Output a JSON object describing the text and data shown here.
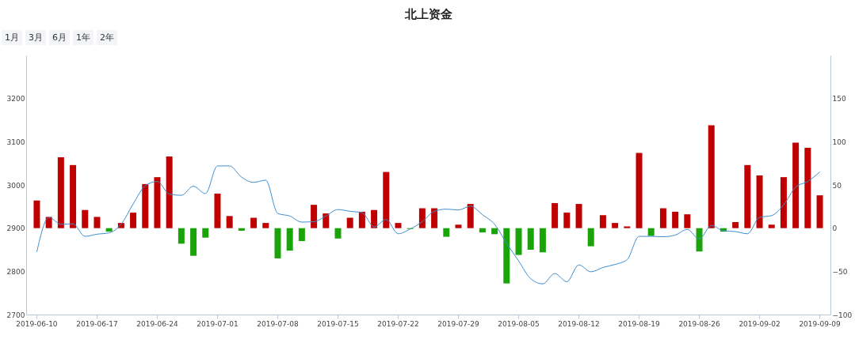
{
  "chart_data": {
    "type": "bar",
    "title": "北上资金",
    "annotations": [
      "1月",
      "3月",
      "6月",
      "1年",
      "2年"
    ],
    "categories": [
      "2019-06-10",
      null,
      null,
      null,
      null,
      "2019-06-17",
      null,
      null,
      null,
      null,
      "2019-06-24",
      null,
      null,
      null,
      null,
      "2019-07-01",
      null,
      null,
      null,
      null,
      "2019-07-08",
      null,
      null,
      null,
      null,
      "2019-07-15",
      null,
      null,
      null,
      null,
      "2019-07-22",
      null,
      null,
      null,
      null,
      "2019-07-29",
      null,
      null,
      null,
      null,
      "2019-08-05",
      null,
      null,
      null,
      null,
      "2019-08-12",
      null,
      null,
      null,
      null,
      "2019-08-19",
      null,
      null,
      null,
      null,
      "2019-08-26",
      null,
      null,
      null,
      null,
      "2019-09-02",
      null,
      null,
      null,
      null,
      "2019-09-09"
    ],
    "series": [
      {
        "axis": "y2",
        "values": [
          32,
          13,
          82,
          73,
          21,
          13,
          -4,
          6,
          18,
          51,
          59,
          83,
          -18,
          -32,
          -11,
          40,
          14,
          -3,
          12,
          6,
          -35,
          -26,
          -15,
          27,
          17,
          -12,
          12,
          19,
          21,
          65,
          6,
          -1,
          23,
          23,
          -10,
          4,
          28,
          -5,
          -7,
          -64,
          -31,
          -25,
          -28,
          29,
          18,
          28,
          -21,
          15,
          6,
          2,
          87,
          -9,
          23,
          19,
          16,
          -27,
          119,
          -4,
          7,
          73,
          61,
          4,
          59,
          99,
          93,
          38
        ],
        "colors": [
          "#c00000",
          "#c00000",
          "#c00000",
          "#c00000",
          "#c00000",
          "#c00000",
          "#1ba40a",
          "#c00000",
          "#c00000",
          "#c00000",
          "#c00000",
          "#c00000",
          "#1ba40a",
          "#1ba40a",
          "#1ba40a",
          "#c00000",
          "#c00000",
          "#1ba40a",
          "#c00000",
          "#c00000",
          "#1ba40a",
          "#1ba40a",
          "#1ba40a",
          "#c00000",
          "#c00000",
          "#1ba40a",
          "#c00000",
          "#c00000",
          "#c00000",
          "#c00000",
          "#c00000",
          "#1ba40a",
          "#c00000",
          "#c00000",
          "#1ba40a",
          "#c00000",
          "#c00000",
          "#1ba40a",
          "#1ba40a",
          "#1ba40a",
          "#1ba40a",
          "#1ba40a",
          "#1ba40a",
          "#c00000",
          "#c00000",
          "#c00000",
          "#1ba40a",
          "#c00000",
          "#c00000",
          "#c00000",
          "#c00000",
          "#1ba40a",
          "#c00000",
          "#c00000",
          "#c00000",
          "#1ba40a",
          "#c00000",
          "#1ba40a",
          "#c00000",
          "#c00000",
          "#c00000",
          "#c00000",
          "#c00000",
          "#c00000",
          "#c00000",
          "#c00000"
        ]
      },
      {
        "type": "line",
        "color": "#3c8dd2",
        "values": [
          2845,
          2925,
          2909,
          2910,
          2881,
          2886,
          2889,
          2909,
          2956,
          2998,
          3008,
          2979,
          2976,
          2997,
          2980,
          3044,
          3044,
          3018,
          3006,
          3011,
          2934,
          2928,
          2914,
          2915,
          2928,
          2943,
          2939,
          2936,
          2903,
          2920,
          2887,
          2898,
          2915,
          2939,
          2944,
          2942,
          2951,
          2931,
          2909,
          2865,
          2824,
          2783,
          2771,
          2795,
          2776,
          2815,
          2799,
          2809,
          2816,
          2827,
          2881,
          2881,
          2880,
          2884,
          2897,
          2875,
          2906,
          2894,
          2892,
          2887,
          2925,
          2929,
          2954,
          2995,
          3008,
          3030
        ]
      }
    ],
    "ylim": [
      2700,
      3300
    ],
    "yticks": [
      2700,
      2800,
      2900,
      3000,
      3100,
      3200
    ],
    "y2lim": [
      -100,
      200
    ],
    "y2ticks": [
      -100,
      -50,
      0,
      50,
      100,
      150
    ],
    "grid": false
  }
}
